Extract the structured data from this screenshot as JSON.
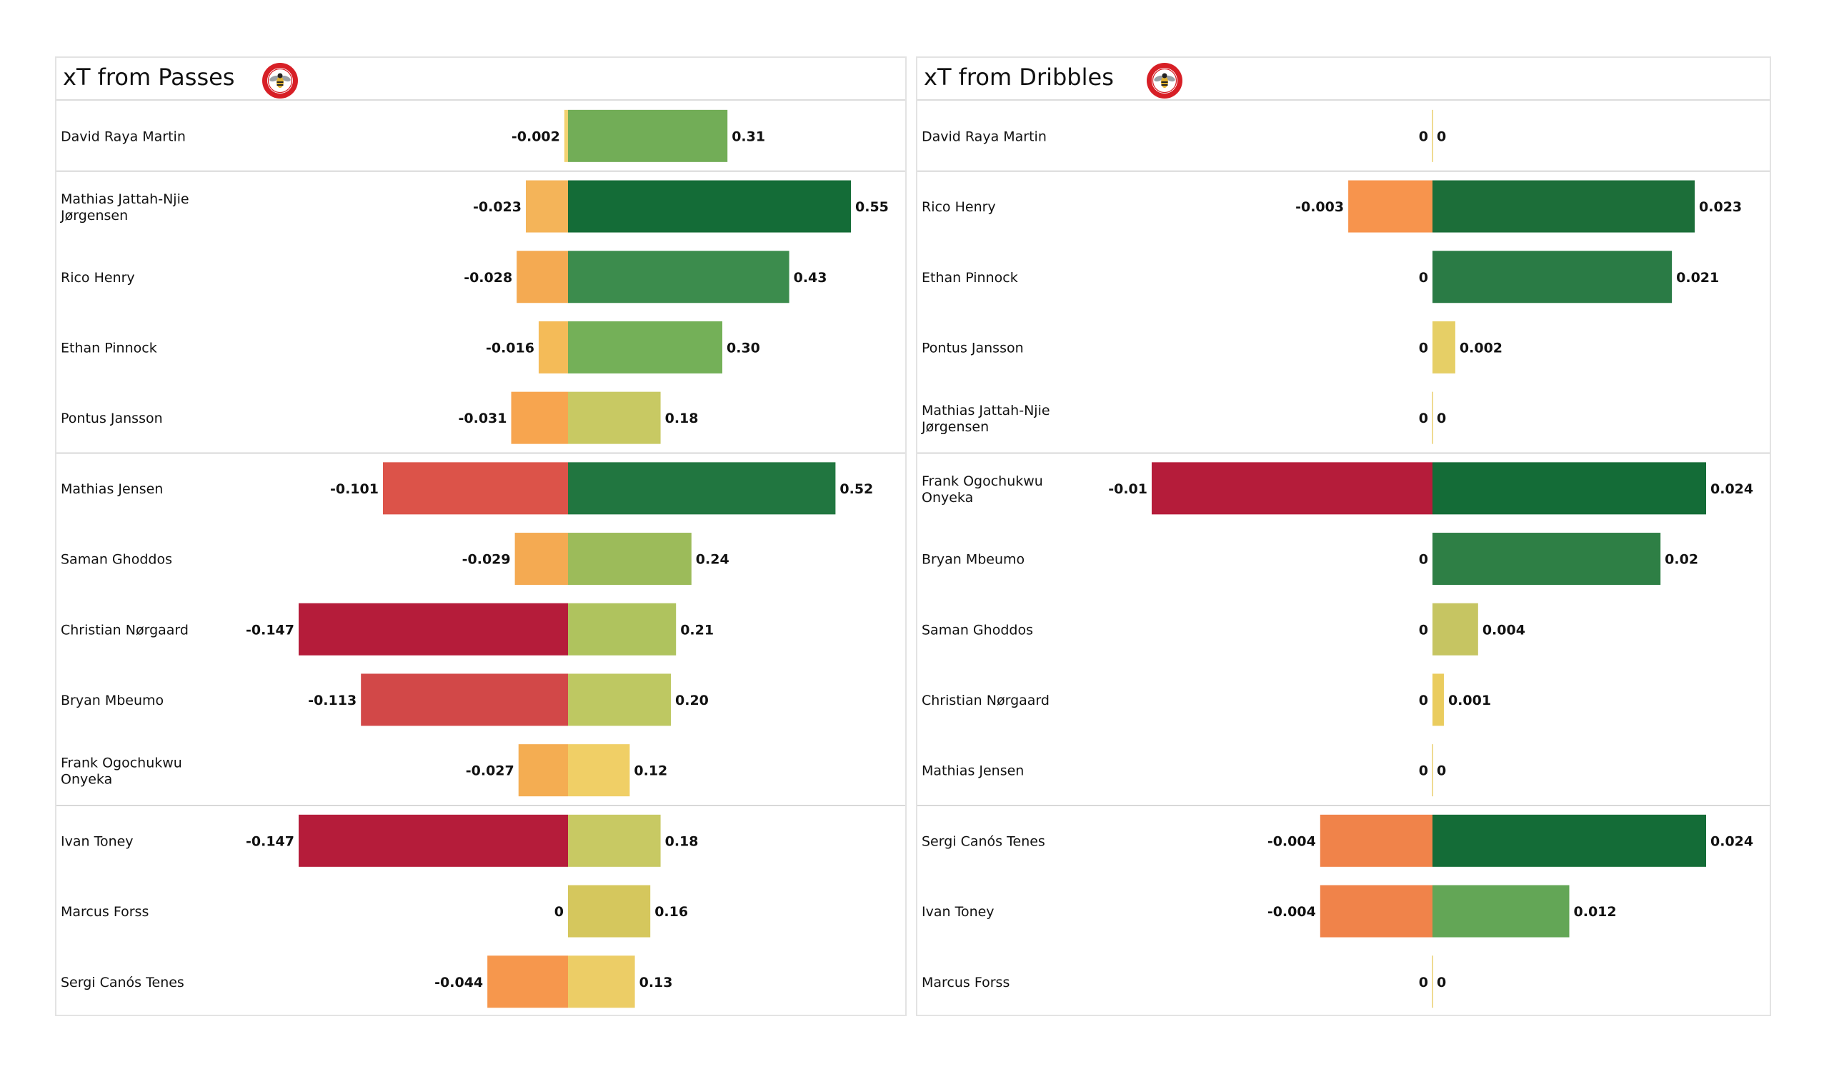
{
  "chart_data": [
    {
      "type": "bar",
      "orientation": "horizontal-diverging",
      "title": "xT from Passes",
      "logo": "team-crest-icon",
      "sections": [
        [
          0
        ],
        [
          1,
          2,
          3,
          4
        ],
        [
          5,
          6,
          7,
          8,
          9
        ],
        [
          10,
          11,
          12
        ]
      ],
      "categories": [
        "David Raya Martin",
        " Mathias Jattah-Njie\nJørgensen",
        "Rico Henry",
        "Ethan Pinnock",
        "Pontus Jansson",
        "Mathias Jensen",
        "Saman Ghoddos",
        "Christian Nørgaard",
        "Bryan Mbeumo",
        "Frank Ogochukwu\nOnyeka",
        "Ivan Toney",
        "Marcus Forss",
        "Sergi Canós Tenes"
      ],
      "series": [
        {
          "name": "negative",
          "values": [
            -0.002,
            -0.023,
            -0.028,
            -0.016,
            -0.031,
            -0.101,
            -0.029,
            -0.147,
            -0.113,
            -0.027,
            -0.147,
            0,
            -0.044
          ],
          "labels": [
            "-0.002",
            "-0.023",
            "-0.028",
            "-0.016",
            "-0.031",
            "-0.101",
            "-0.029",
            "-0.147",
            "-0.113",
            "-0.027",
            "-0.147",
            "0",
            "-0.044"
          ],
          "colors": [
            "#f2d270",
            "#f4b459",
            "#f4aa52",
            "#f4bb58",
            "#f7a54f",
            "#dc5349",
            "#f4aa52",
            "#b51c3a",
            "#d24848",
            "#f4ad52",
            "#b51c3a",
            "#f2d270",
            "#f6974d"
          ]
        },
        {
          "name": "positive",
          "values": [
            0.31,
            0.55,
            0.43,
            0.3,
            0.18,
            0.52,
            0.24,
            0.21,
            0.2,
            0.12,
            0.18,
            0.16,
            0.13
          ],
          "labels": [
            "0.31",
            "0.55",
            "0.43",
            "0.30",
            "0.18",
            "0.52",
            "0.24",
            "0.21",
            "0.20",
            "0.12",
            "0.18",
            "0.16",
            "0.13"
          ],
          "colors": [
            "#72ad57",
            "#146c37",
            "#3c8c4d",
            "#74b058",
            "#c8c963",
            "#217640",
            "#9cbb5a",
            "#afc35e",
            "#bec862",
            "#f0cf66",
            "#c8c963",
            "#d5c75d",
            "#eccd66"
          ]
        }
      ],
      "neg_max_abs": 0.147,
      "pos_max": 0.55,
      "xlabel": "",
      "ylabel": "",
      "grid": false
    },
    {
      "type": "bar",
      "orientation": "horizontal-diverging",
      "title": "xT from Dribbles",
      "logo": "team-crest-icon",
      "sections": [
        [
          0
        ],
        [
          1,
          2,
          3,
          4
        ],
        [
          5,
          6,
          7,
          8,
          9
        ],
        [
          10,
          11,
          12
        ]
      ],
      "categories": [
        "David Raya Martin",
        "Rico Henry",
        "Ethan Pinnock",
        "Pontus Jansson",
        " Mathias Jattah-Njie\nJørgensen",
        "Frank Ogochukwu\nOnyeka",
        "Bryan Mbeumo",
        "Saman Ghoddos",
        "Christian Nørgaard",
        "Mathias Jensen",
        "Sergi Canós Tenes",
        "Ivan Toney",
        "Marcus Forss"
      ],
      "series": [
        {
          "name": "negative",
          "values": [
            0,
            -0.003,
            0,
            0,
            0,
            -0.01,
            0,
            0,
            0,
            0,
            -0.004,
            -0.004,
            0
          ],
          "labels": [
            "0",
            "-0.003",
            "0",
            "0",
            "0",
            "-0.01",
            "0",
            "0",
            "0",
            "0",
            "-0.004",
            "-0.004",
            "0"
          ],
          "colors": [
            "#eacf70",
            "#f7944d",
            "#eacf70",
            "#eacf70",
            "#eacf70",
            "#b51c3a",
            "#eacf70",
            "#eacf70",
            "#eacf70",
            "#eacf70",
            "#f0834a",
            "#f0834a",
            "#eacf70"
          ]
        },
        {
          "name": "positive",
          "values": [
            0,
            0.023,
            0.021,
            0.002,
            0,
            0.024,
            0.02,
            0.004,
            0.001,
            0,
            0.024,
            0.012,
            0
          ],
          "labels": [
            "0",
            "0.023",
            "0.021",
            "0.002",
            "0",
            "0.024",
            "0.02",
            "0.004",
            "0.001",
            "0",
            "0.024",
            "0.012",
            "0"
          ],
          "colors": [
            "#eacf70",
            "#1c6e39",
            "#2a7b45",
            "#e6cf66",
            "#eacf70",
            "#146c37",
            "#2e7f45",
            "#c6c562",
            "#eacc5e",
            "#eacf70",
            "#146c37",
            "#63a656",
            "#eacf70"
          ]
        }
      ],
      "neg_max_abs": 0.01,
      "pos_max": 0.024,
      "xlabel": "",
      "ylabel": "",
      "grid": false
    }
  ]
}
